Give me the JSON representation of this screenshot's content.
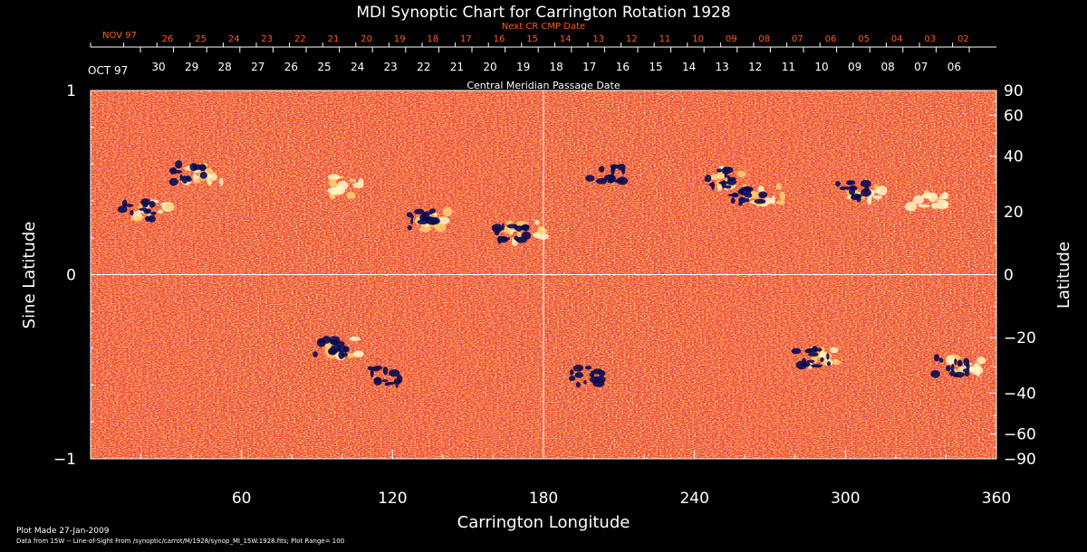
{
  "chart_data": {
    "type": "heatmap",
    "title": "MDI Synoptic Chart for Carrington Rotation 1928",
    "top_axis_outer": {
      "title": "Next CR CMP Date",
      "month_label": "NOV 97",
      "dates": [
        "26",
        "25",
        "24",
        "23",
        "22",
        "21",
        "20",
        "19",
        "18",
        "17",
        "16",
        "15",
        "14",
        "13",
        "12",
        "11",
        "10",
        "09",
        "08",
        "07",
        "06",
        "05",
        "04",
        "03",
        "02"
      ]
    },
    "top_axis_inner": {
      "title": "Central Meridian Passage Date",
      "month_label": "OCT 97",
      "dates": [
        "30",
        "29",
        "28",
        "27",
        "26",
        "25",
        "24",
        "23",
        "22",
        "21",
        "20",
        "19",
        "18",
        "17",
        "16",
        "15",
        "14",
        "13",
        "12",
        "11",
        "10",
        "09",
        "08",
        "07",
        "06"
      ]
    },
    "xlabel": "Carrington Longitude",
    "xlim": [
      0,
      360
    ],
    "xticks": [
      "60",
      "120",
      "180",
      "240",
      "300",
      "360"
    ],
    "ylabel_left": "Sine Latitude",
    "ylim": [
      -1,
      1
    ],
    "yticks_left": [
      "1",
      "0",
      "−1"
    ],
    "ylabel_right": "Latitude",
    "yticks_right": [
      "90",
      "60",
      "40",
      "20",
      "0",
      "−20",
      "−40",
      "−60",
      "−90"
    ],
    "colorscale": {
      "low": "#0a0a50",
      "mid": "#ff5a1e",
      "high": "#fff5c8"
    },
    "active_regions": [
      {
        "lon": 22,
        "sinlat": 0.35,
        "polarity": "mixed"
      },
      {
        "lon": 42,
        "sinlat": 0.55,
        "polarity": "mixed"
      },
      {
        "lon": 100,
        "sinlat": 0.48,
        "polarity": "positive"
      },
      {
        "lon": 133,
        "sinlat": 0.3,
        "polarity": "mixed"
      },
      {
        "lon": 170,
        "sinlat": 0.23,
        "polarity": "mixed"
      },
      {
        "lon": 208,
        "sinlat": 0.55,
        "polarity": "negative"
      },
      {
        "lon": 252,
        "sinlat": 0.52,
        "polarity": "mixed"
      },
      {
        "lon": 265,
        "sinlat": 0.43,
        "polarity": "mixed"
      },
      {
        "lon": 305,
        "sinlat": 0.45,
        "polarity": "mixed"
      },
      {
        "lon": 330,
        "sinlat": 0.42,
        "polarity": "positive"
      },
      {
        "lon": 98,
        "sinlat": -0.4,
        "polarity": "mixed"
      },
      {
        "lon": 120,
        "sinlat": -0.55,
        "polarity": "negative"
      },
      {
        "lon": 200,
        "sinlat": -0.55,
        "polarity": "negative"
      },
      {
        "lon": 290,
        "sinlat": -0.45,
        "polarity": "mixed"
      },
      {
        "lon": 345,
        "sinlat": -0.5,
        "polarity": "mixed"
      }
    ]
  },
  "footer": {
    "plot_made": "Plot Made 27-Jan-2009",
    "data_source": "Data from 15W -- Line-of-Sight From /synoptic/carrot/M/1928/synop_Ml_15W.1928.fits; Plot Range= 100"
  }
}
